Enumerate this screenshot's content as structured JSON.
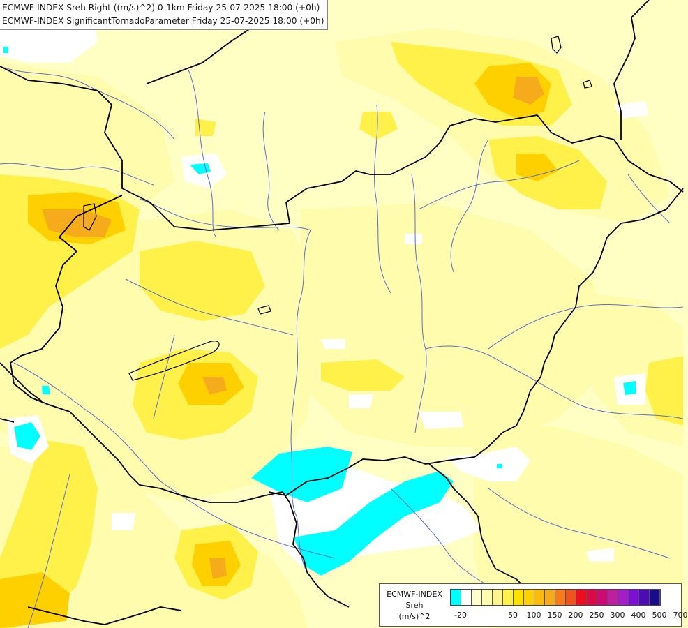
{
  "titles": [
    "ECMWF-INDEX Sreh Right ((m/s)^2) 0-1km Friday 25-07-2025 18:00 (+0h)",
    "ECMWF-INDEX SignificantTornadoParameter Friday 25-07-2025 18:00 (+0h)"
  ],
  "colors": {
    "background": "#ffffc4",
    "pale_yellow": "#fffcae",
    "yellow": "#fff04a",
    "gold": "#ffd000",
    "orange": "#f6ab1c",
    "white": "#ffffff",
    "cyan": "#00ffff",
    "border": "#000000",
    "river": "#5a6fd0"
  },
  "legend": {
    "product": "ECMWF-INDEX",
    "parameter": "Sreh",
    "unit": "(m/s)^2",
    "swatches": [
      "#00ffff",
      "#ffffff",
      "#ffffd0",
      "#fffcae",
      "#fff490",
      "#fff04a",
      "#ffe000",
      "#ffd000",
      "#fbbb0c",
      "#f6ab1c",
      "#f47c1e",
      "#f0541e",
      "#ec0e1e",
      "#de0a48",
      "#cc0a74",
      "#bf1ea0",
      "#a41ec8",
      "#7b10d4",
      "#4c0cb4",
      "#1a0a8c"
    ],
    "ticks": [
      "-20",
      "50",
      "100",
      "150",
      "200",
      "250",
      "300",
      "400",
      "500",
      "700"
    ]
  }
}
